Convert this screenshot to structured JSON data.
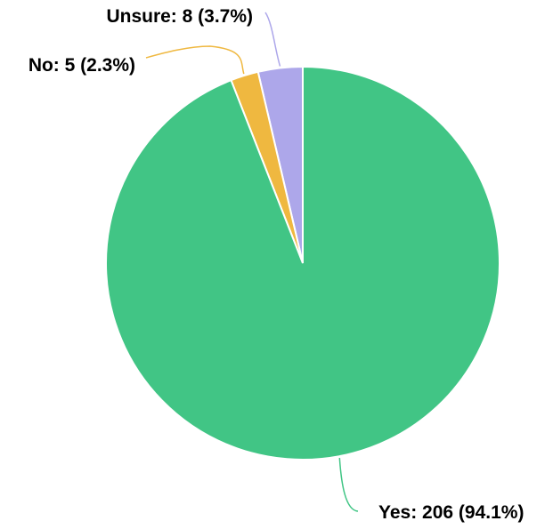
{
  "chart_data": {
    "type": "pie",
    "title": "",
    "legend": "none",
    "slices": [
      {
        "category": "Unsure",
        "value": 8,
        "percent": 3.7,
        "label": "Unsure: 8 (3.7%)",
        "color": "#ada7ea"
      },
      {
        "category": "No",
        "value": 5,
        "percent": 2.3,
        "label": "No: 5 (2.3%)",
        "color": "#efb840"
      },
      {
        "category": "Yes",
        "value": 206,
        "percent": 94.1,
        "label": "Yes: 206 (94.1%)",
        "color": "#41c585"
      }
    ],
    "start_angle_deg": 0,
    "direction": "counterclockwise"
  }
}
